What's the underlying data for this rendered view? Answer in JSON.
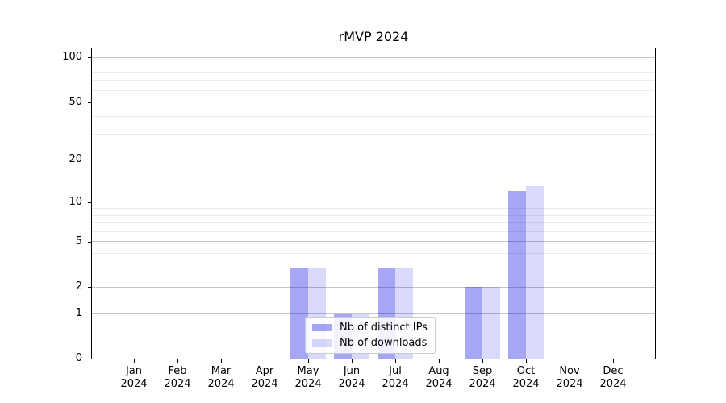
{
  "title": "rMVP 2024",
  "legend": {
    "items": [
      {
        "label": "Nb of distinct IPs",
        "color": "rgba(0,0,230,0.35)"
      },
      {
        "label": "Nb of downloads",
        "color": "rgba(0,0,230,0.15)"
      }
    ]
  },
  "colors": {
    "bar_dark": "rgba(0,0,230,0.35)",
    "bar_light": "rgba(0,0,230,0.15)",
    "grid_major": "#c6c6c6",
    "grid_minor": "#ececec",
    "axis": "#000000"
  },
  "chart_data": {
    "type": "bar",
    "title": "rMVP 2024",
    "categories": [
      "Jan 2024",
      "Feb 2024",
      "Mar 2024",
      "Apr 2024",
      "May 2024",
      "Jun 2024",
      "Jul 2024",
      "Aug 2024",
      "Sep 2024",
      "Oct 2024",
      "Nov 2024",
      "Dec 2024"
    ],
    "series": [
      {
        "name": "Nb of distinct IPs",
        "color": "rgba(0,0,230,0.35)",
        "values": [
          0,
          0,
          0,
          0,
          3,
          1,
          3,
          0,
          2,
          12,
          0,
          0
        ]
      },
      {
        "name": "Nb of downloads",
        "color": "rgba(0,0,230,0.15)",
        "values": [
          0,
          0,
          0,
          0,
          3,
          1,
          3,
          0,
          2,
          13,
          0,
          0
        ]
      }
    ],
    "xlabel": "",
    "ylabel": "",
    "yscale": "log1p",
    "ylim": [
      0,
      114
    ],
    "y_major_ticks": [
      0,
      1,
      2,
      5,
      10,
      20,
      50,
      100
    ],
    "y_minor_gridlines": [
      3,
      4,
      6,
      7,
      8,
      9,
      30,
      40,
      60,
      70,
      80,
      90
    ],
    "grid": true,
    "legend_position": "inside lower center"
  }
}
